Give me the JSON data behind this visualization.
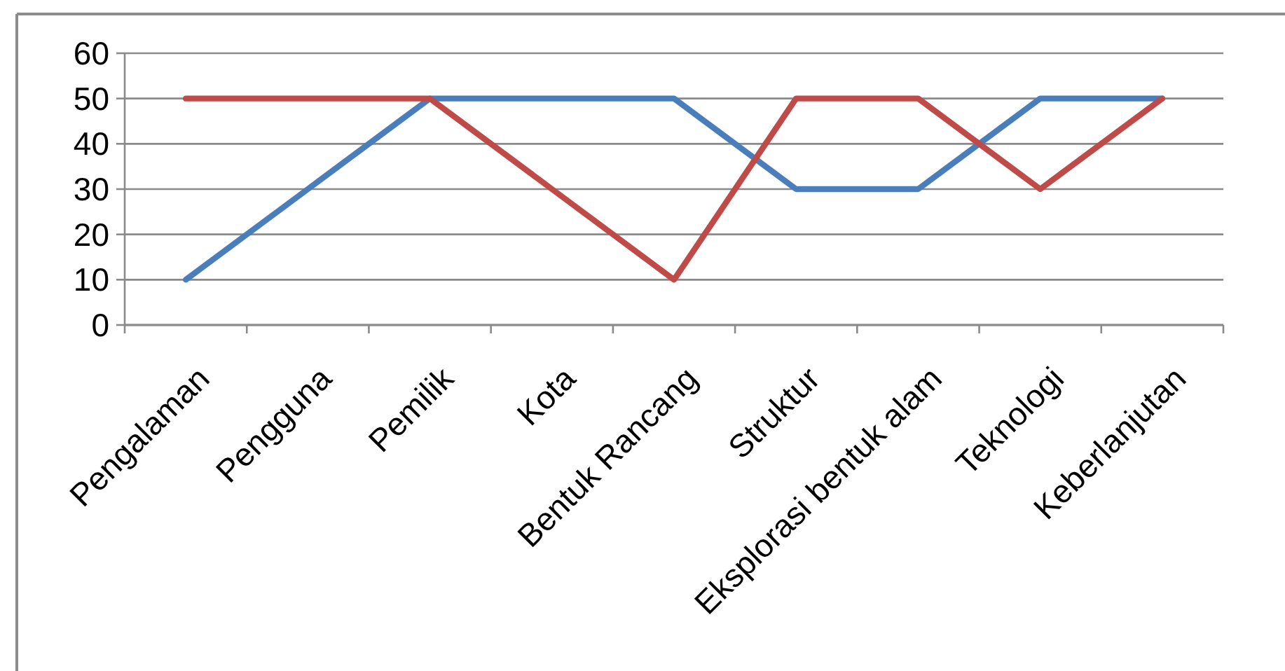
{
  "chart_data": {
    "type": "line",
    "categories": [
      "Pengalaman",
      "Pengguna",
      "Pemilik",
      "Kota",
      "Bentuk Rancang",
      "Struktur",
      "Eksplorasi bentuk alam",
      "Teknologi",
      "Keberlanjutan"
    ],
    "series": [
      {
        "color": "#4a7ebb",
        "values": [
          10,
          30,
          50,
          50,
          50,
          30,
          30,
          50,
          50
        ]
      },
      {
        "color": "#be4b48",
        "values": [
          50,
          50,
          50,
          30,
          10,
          50,
          50,
          30,
          50
        ]
      }
    ],
    "ylim": [
      0,
      60
    ],
    "yticks": [
      0,
      10,
      20,
      30,
      40,
      50,
      60
    ],
    "grid": "y"
  }
}
